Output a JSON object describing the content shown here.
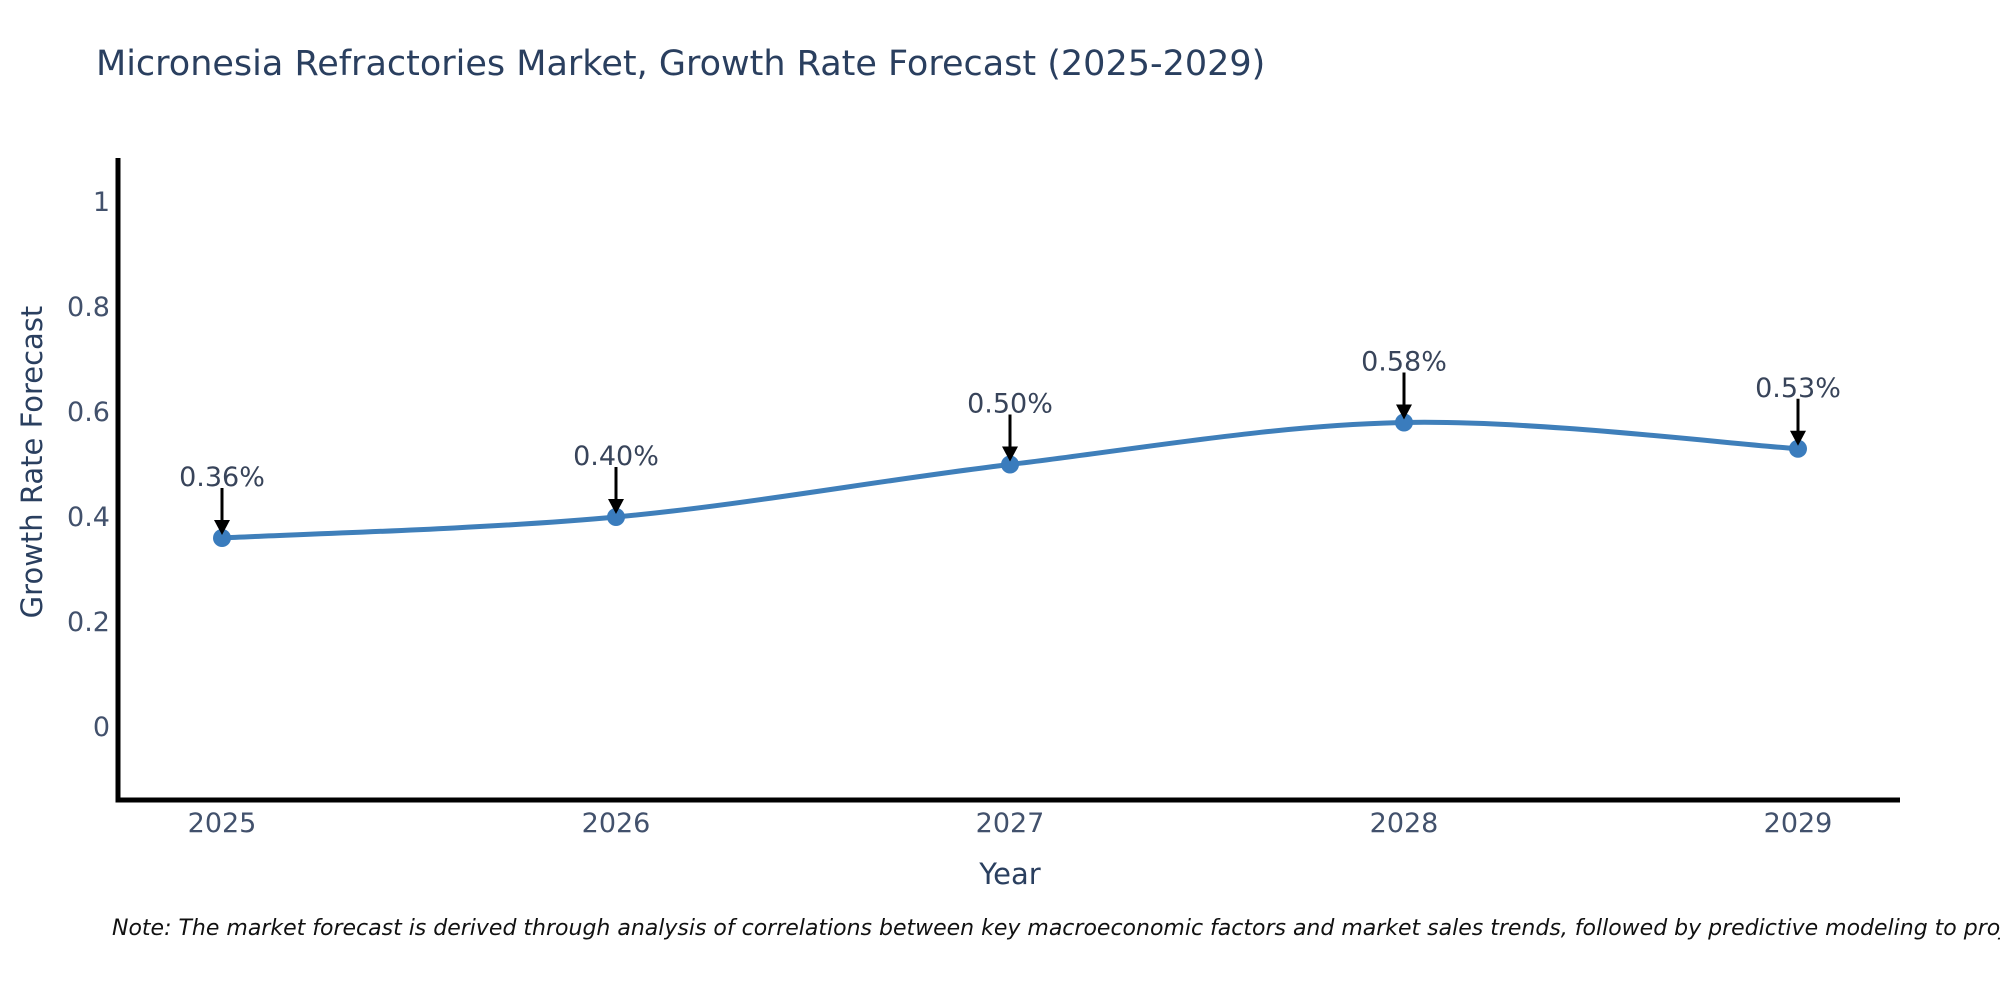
{
  "title": "Micronesia Refractories Market, Growth Rate Forecast (2025-2029)",
  "note": "Note: The market forecast is derived through analysis of correlations between key macroeconomic factors and market sales trends, followed by predictive modeling to project future sales",
  "chart_data": {
    "type": "line",
    "line_shape": "spline",
    "title": "Micronesia Refractories Market, Growth Rate Forecast (2025-2029)",
    "x": [
      2025,
      2026,
      2027,
      2028,
      2029
    ],
    "values": [
      0.36,
      0.4,
      0.5,
      0.58,
      0.53
    ],
    "point_labels": [
      "0.36%",
      "0.40%",
      "0.50%",
      "0.58%",
      "0.53%"
    ],
    "xlabel": "Year",
    "ylabel": "Growth Rate Forecast",
    "yticks": [
      0,
      0.2,
      0.4,
      0.6,
      0.8,
      1
    ],
    "ylim": [
      -0.14,
      1.08
    ],
    "grid": false,
    "legend": false,
    "markers": true,
    "annotation_arrows": "down-to-point"
  },
  "colors": {
    "line": "#3f7fba",
    "marker": "#3a7cbd",
    "axis": "#000000",
    "title_text": "#2a3f5f",
    "tick_text": "#42516c",
    "annotation_text": "#38445a",
    "arrow": "#000000",
    "note_text": "#111111",
    "background": "#ffffff"
  }
}
